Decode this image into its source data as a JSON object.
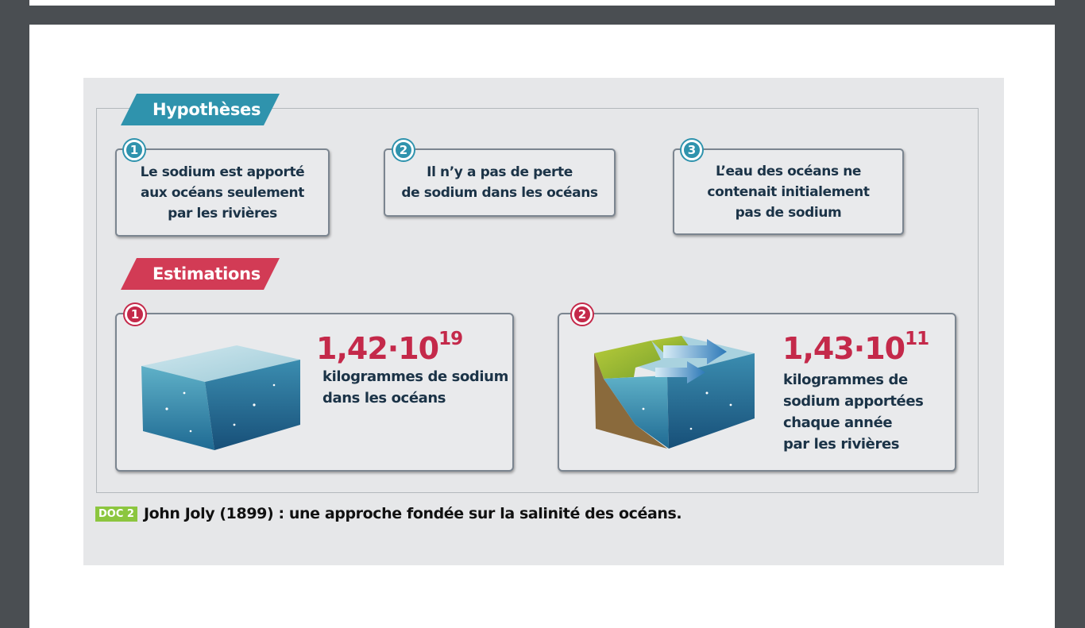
{
  "hypotheses": {
    "heading": "Hypothèses",
    "items": [
      {
        "number": "1",
        "text": "Le sodium est apporté\naux océans seulement\npar les rivières"
      },
      {
        "number": "2",
        "text": "Il n’y a pas de perte\nde sodium dans les océans"
      },
      {
        "number": "3",
        "text": "L’eau des océans ne\ncontenait initialement\npas de sodium"
      }
    ]
  },
  "estimations": {
    "heading": "Estimations",
    "items": [
      {
        "number": "1",
        "mantissa": "1,42·10",
        "exponent": "19",
        "text": "kilogrammes de sodium\ndans les océans"
      },
      {
        "number": "2",
        "mantissa": "1,43·10",
        "exponent": "11",
        "text": "kilogrammes de\nsodium apportées\nchaque année\npar les rivières"
      }
    ]
  },
  "caption": {
    "badge": "DOC 2",
    "text": "John Joly (1899) : une approche fondée sur la salinité des océans."
  },
  "colors": {
    "hypotheses_accent": "#2f93ad",
    "estimations_accent": "#d23b55",
    "doc_badge": "#8cc63f"
  }
}
